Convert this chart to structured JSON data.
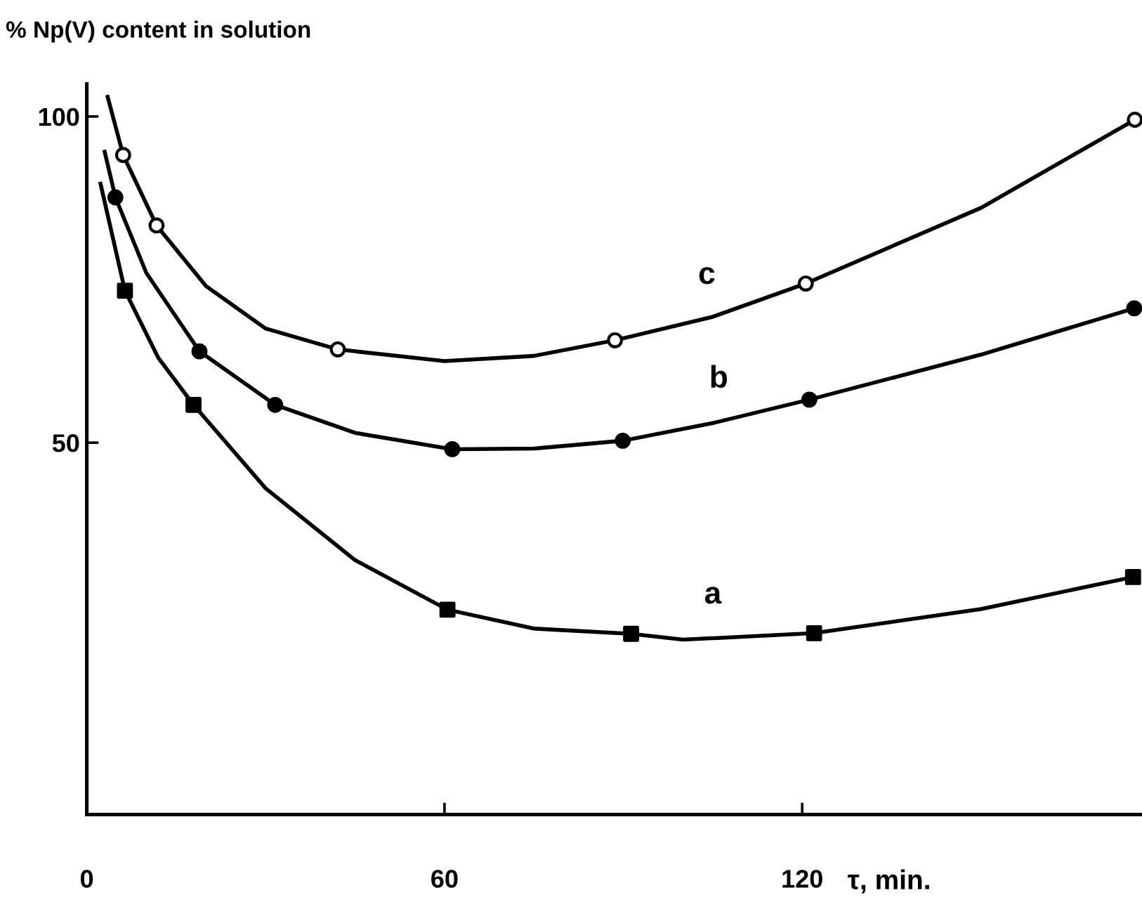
{
  "chart_data": {
    "type": "line",
    "ylabel": "% Np(V) content in solution",
    "xlabel": "τ, min.",
    "xlim": [
      0,
      177
    ],
    "ylim": [
      -7,
      105
    ],
    "xticks": [
      0,
      60,
      120
    ],
    "yticks": [
      50,
      100
    ],
    "grid": false,
    "legend": false,
    "series": [
      {
        "marker": "none",
        "color": "#000000",
        "x": [
          3.5,
          6.1,
          11.7,
          20,
          30,
          42.1,
          60,
          75,
          88.6,
          105,
          120.6,
          150,
          175.8
        ],
        "values": [
          103,
          94.1,
          83.3,
          74,
          67.5,
          64.3,
          62.5,
          63.3,
          65.7,
          69.3,
          74.4,
          86,
          99.5
        ]
      },
      {
        "marker": "none",
        "color": "#000000",
        "x": [
          3,
          4.8,
          10,
          18.9,
          31.6,
          45,
          61.3,
          75,
          89.9,
          105,
          121.2,
          150,
          175.7
        ],
        "values": [
          94.6,
          87.6,
          76,
          64,
          55.8,
          51.5,
          49,
          49.1,
          50.3,
          53,
          56.6,
          63.5,
          70.6
        ]
      },
      {
        "marker": "none",
        "color": "#000000",
        "x": [
          2.3,
          6.4,
          12,
          17.9,
          30,
          45,
          60.5,
          75,
          91.3,
          100,
          122,
          150,
          175.5
        ],
        "values": [
          89.7,
          73.3,
          63,
          55.8,
          43,
          32,
          24.4,
          21.5,
          20.7,
          19.8,
          20.8,
          24.5,
          29.4
        ]
      },
      {
        "type": "scatter",
        "marker": "circle",
        "color": "#ffffff",
        "x": [
          6.1,
          11.7,
          42.1,
          88.6,
          120.6,
          175.8
        ],
        "values": [
          94.1,
          83.3,
          64.3,
          65.7,
          74.4,
          99.5
        ]
      },
      {
        "type": "scatter",
        "marker": "circle",
        "color": "#000000",
        "x": [
          4.8,
          18.9,
          31.6,
          61.3,
          89.9,
          121.2,
          175.7
        ],
        "values": [
          87.6,
          64,
          55.8,
          49,
          50.3,
          56.6,
          70.6
        ]
      },
      {
        "type": "scatter",
        "marker": "square",
        "color": "#000000",
        "x": [
          6.4,
          17.9,
          60.5,
          91.3,
          122,
          175.5
        ],
        "values": [
          73.3,
          55.8,
          24.4,
          20.7,
          20.8,
          29.4
        ]
      }
    ],
    "annotations": [
      {
        "text": "c",
        "x": 104,
        "y": 69
      },
      {
        "text": "b",
        "x": 106,
        "y": 53.1
      },
      {
        "text": "a",
        "x": 105,
        "y": 20
      }
    ]
  }
}
